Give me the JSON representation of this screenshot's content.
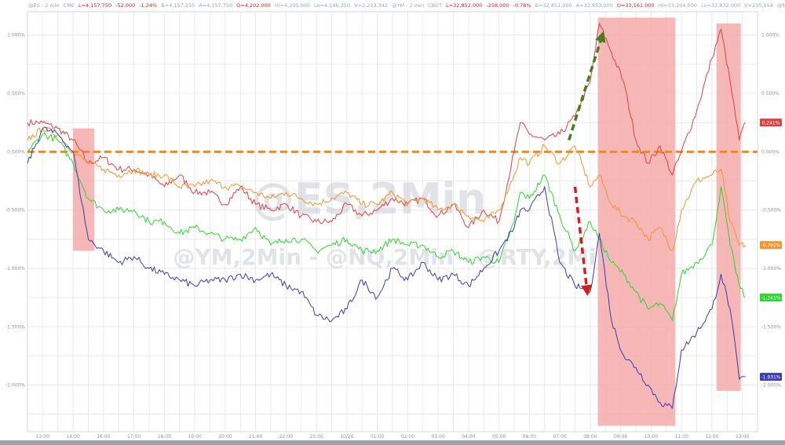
{
  "header": {
    "items": [
      {
        "text": "@ES - 2 min",
        "color": "#9aa3b2"
      },
      {
        "text": "CME",
        "color": "#9aa3b2"
      },
      {
        "text": "L=4,157.750",
        "color": "#d11f1f"
      },
      {
        "text": "-52.000",
        "color": "#d11f1f"
      },
      {
        "text": "-1.24%",
        "color": "#d11f1f"
      },
      {
        "text": "B=4,157.250",
        "color": "#9aa3b2"
      },
      {
        "text": "A=4,157.750",
        "color": "#9aa3b2"
      },
      {
        "text": "O=4,202.000",
        "color": "#d11f1f"
      },
      {
        "text": "Hi=4,205.000",
        "color": "#9aa3b2"
      },
      {
        "text": "Lo=4,146.250",
        "color": "#9aa3b2"
      },
      {
        "text": "V=2,233,342",
        "color": "#9aa3b2"
      },
      {
        "text": "@YM - 2 min",
        "color": "#9aa3b2"
      },
      {
        "text": "CBOT",
        "color": "#9aa3b2"
      },
      {
        "text": "L=32,852.000",
        "color": "#d11f1f"
      },
      {
        "text": "-258.000",
        "color": "#d11f1f"
      },
      {
        "text": "-0.78%",
        "color": "#d11f1f"
      },
      {
        "text": "B=32,851.000",
        "color": "#9aa3b2"
      },
      {
        "text": "A=32,853.000",
        "color": "#9aa3b2"
      },
      {
        "text": "O=33,161.000",
        "color": "#d11f1f"
      },
      {
        "text": "Hi=33,204.000",
        "color": "#9aa3b2"
      },
      {
        "text": "Lo=32,832.000",
        "color": "#9aa3b2"
      },
      {
        "text": "V=235,154",
        "color": "#9aa3b2"
      },
      {
        "text": "@NQ - 2 min",
        "color": "#9aa3b2"
      }
    ]
  },
  "watermark": {
    "line1": "@ES,2Min",
    "line2": "@YM,2Min - @NQ,2Min - @RTY,2Min"
  },
  "colors": {
    "ES": "#e34040",
    "YM": "#f0952e",
    "RTY": "#2fd42f",
    "NQ": "#3b3bb4",
    "zero_line": "#f08a1c",
    "highlight": "#f4aaaa",
    "green_arrow": "#4b7d1e",
    "red_arrow": "#d11f1f"
  },
  "chart_data": {
    "type": "line",
    "y_unit": "percent change",
    "ylim": [
      -2.4,
      1.2
    ],
    "y_ticks": [
      1.0,
      0.5,
      0.0,
      -0.5,
      -1.0,
      -1.5,
      -2.0
    ],
    "y_tick_labels_left": [
      "1.000%",
      "0.500%",
      "0.000%",
      "-0.500%",
      "-1.000%",
      "-1.500%",
      "-2.000%"
    ],
    "y_tick_labels_right": [
      "1.000%",
      "0.500%",
      "0.000%",
      "-0.500%",
      "-1.000%",
      "-1.500%",
      "-2.000%"
    ],
    "x_tick_labels": [
      "13:00",
      "14:00",
      "16:00",
      "17:00",
      "18:00",
      "19:00",
      "20:00",
      "21:00",
      "22:00",
      "23:00",
      "10/26",
      "01:00",
      "02:00",
      "03:00",
      "04:00",
      "05:00",
      "06:00",
      "07:00",
      "08:00",
      "09:00",
      "10:00",
      "11:00",
      "12:00",
      "13:00"
    ],
    "x_tick_positions": [
      0.5,
      1.5,
      2.5,
      3.5,
      4.5,
      5.5,
      6.5,
      7.5,
      8.5,
      9.5,
      10.5,
      11.5,
      12.5,
      13.5,
      14.5,
      15.5,
      16.5,
      17.5,
      18.5,
      19.5,
      20.5,
      21.5,
      22.5,
      23.5
    ],
    "xlim": [
      0,
      24
    ],
    "grid": true,
    "zero_line": 0.0,
    "highlight_regions": [
      [
        1.5,
        2.2
      ],
      [
        18.75,
        21.3
      ],
      [
        22.65,
        23.45
      ]
    ],
    "arrows": [
      {
        "from": [
          17.8,
          0.1
        ],
        "to": [
          18.9,
          1.0
        ],
        "color": "green"
      },
      {
        "from": [
          18.0,
          -0.3
        ],
        "to": [
          18.4,
          -1.2
        ],
        "color": "red"
      }
    ],
    "series": [
      {
        "name": "ES",
        "last_label": "0.241%",
        "x": [
          0,
          0.5,
          1.0,
          1.5,
          2.0,
          2.5,
          3.0,
          3.5,
          4.0,
          4.5,
          5.0,
          5.5,
          6.0,
          6.5,
          7.0,
          7.5,
          8.0,
          8.5,
          9.0,
          9.5,
          10.0,
          10.5,
          11.0,
          11.5,
          12.0,
          12.5,
          13.0,
          13.5,
          14.0,
          14.5,
          15.0,
          15.5,
          16.0,
          16.2,
          16.5,
          17.0,
          17.5,
          18.0,
          18.5,
          18.8,
          19.2,
          19.6,
          20.0,
          20.4,
          20.8,
          21.2,
          21.5,
          22.0,
          22.5,
          22.8,
          23.1,
          23.4,
          23.6
        ],
        "y": [
          0.25,
          0.25,
          0.2,
          0.1,
          -0.1,
          -0.05,
          -0.15,
          -0.15,
          -0.2,
          -0.3,
          -0.2,
          -0.35,
          -0.35,
          -0.45,
          -0.3,
          -0.45,
          -0.5,
          -0.45,
          -0.55,
          -0.6,
          -0.6,
          -0.45,
          -0.55,
          -0.5,
          -0.4,
          -0.45,
          -0.4,
          -0.55,
          -0.45,
          -0.65,
          -0.5,
          -0.6,
          0.0,
          0.25,
          0.15,
          0.1,
          0.15,
          0.3,
          0.6,
          1.1,
          0.85,
          0.6,
          0.1,
          -0.1,
          0.05,
          -0.2,
          0.0,
          0.35,
          0.8,
          1.05,
          0.6,
          0.1,
          0.25
        ]
      },
      {
        "name": "YM",
        "last_label": "-0.792%",
        "x": [
          0,
          0.5,
          1.0,
          1.5,
          2.0,
          2.5,
          3.0,
          3.5,
          4.0,
          4.5,
          5.0,
          5.5,
          6.0,
          6.5,
          7.0,
          7.5,
          8.0,
          8.5,
          9.0,
          9.5,
          10.0,
          10.5,
          11.0,
          11.5,
          12.0,
          12.5,
          13.0,
          13.5,
          14.0,
          14.5,
          15.0,
          15.5,
          16.0,
          16.2,
          16.5,
          17.0,
          17.5,
          18.0,
          18.5,
          18.8,
          19.2,
          19.6,
          20.0,
          20.4,
          20.8,
          21.2,
          21.5,
          22.0,
          22.5,
          22.8,
          23.1,
          23.4,
          23.6
        ],
        "y": [
          0.1,
          0.2,
          0.15,
          0.0,
          -0.1,
          -0.15,
          -0.2,
          -0.15,
          -0.2,
          -0.2,
          -0.3,
          -0.3,
          -0.25,
          -0.3,
          -0.3,
          -0.35,
          -0.4,
          -0.35,
          -0.4,
          -0.45,
          -0.4,
          -0.35,
          -0.45,
          -0.45,
          -0.35,
          -0.45,
          -0.4,
          -0.5,
          -0.45,
          -0.55,
          -0.6,
          -0.5,
          -0.2,
          -0.05,
          -0.1,
          0.05,
          -0.1,
          0.05,
          -0.3,
          -0.2,
          -0.45,
          -0.55,
          -0.6,
          -0.75,
          -0.65,
          -0.85,
          -0.5,
          -0.25,
          -0.2,
          -0.15,
          -0.6,
          -0.8,
          -0.8
        ]
      },
      {
        "name": "RTY",
        "last_label": "-1.241%",
        "x": [
          0,
          0.5,
          1.0,
          1.5,
          2.0,
          2.5,
          3.0,
          3.5,
          4.0,
          4.5,
          5.0,
          5.5,
          6.0,
          6.5,
          7.0,
          7.5,
          8.0,
          8.5,
          9.0,
          9.5,
          10.0,
          10.5,
          11.0,
          11.5,
          12.0,
          12.5,
          13.0,
          13.5,
          14.0,
          14.5,
          15.0,
          15.5,
          16.0,
          16.2,
          16.5,
          17.0,
          17.5,
          18.0,
          18.5,
          18.8,
          19.2,
          19.6,
          20.0,
          20.4,
          20.8,
          21.2,
          21.5,
          22.0,
          22.5,
          22.8,
          23.1,
          23.4,
          23.6
        ],
        "y": [
          0.0,
          0.15,
          0.1,
          -0.1,
          -0.4,
          -0.5,
          -0.5,
          -0.5,
          -0.6,
          -0.6,
          -0.7,
          -0.65,
          -0.7,
          -0.75,
          -0.75,
          -0.65,
          -0.8,
          -0.75,
          -0.75,
          -0.85,
          -0.8,
          -0.75,
          -0.85,
          -0.85,
          -0.75,
          -0.8,
          -0.8,
          -0.9,
          -0.85,
          -0.95,
          -0.9,
          -0.95,
          -0.6,
          -0.35,
          -0.4,
          -0.2,
          -0.55,
          -0.85,
          -0.6,
          -0.75,
          -0.95,
          -1.05,
          -1.2,
          -1.35,
          -1.3,
          -1.45,
          -1.05,
          -0.95,
          -0.8,
          -0.3,
          -0.8,
          -1.15,
          -1.25
        ]
      },
      {
        "name": "NQ",
        "last_label": "-1.931%",
        "x": [
          0,
          0.5,
          1.0,
          1.5,
          2.0,
          2.5,
          3.0,
          3.5,
          4.0,
          4.5,
          5.0,
          5.5,
          6.0,
          6.5,
          7.0,
          7.5,
          8.0,
          8.5,
          9.0,
          9.5,
          10.0,
          10.5,
          11.0,
          11.5,
          12.0,
          12.5,
          13.0,
          13.5,
          14.0,
          14.5,
          15.0,
          15.5,
          16.0,
          16.2,
          16.5,
          17.0,
          17.5,
          18.0,
          18.5,
          18.8,
          19.2,
          19.6,
          20.0,
          20.4,
          20.8,
          21.2,
          21.5,
          22.0,
          22.5,
          22.8,
          23.1,
          23.4,
          23.6
        ],
        "y": [
          -0.1,
          0.2,
          0.15,
          0.0,
          -0.75,
          -0.85,
          -0.95,
          -0.9,
          -1.0,
          -1.05,
          -1.1,
          -1.15,
          -1.1,
          -1.1,
          -1.05,
          -1.1,
          -1.05,
          -1.15,
          -1.2,
          -1.4,
          -1.45,
          -1.35,
          -1.1,
          -1.25,
          -1.0,
          -1.1,
          -0.95,
          -1.1,
          -1.05,
          -1.15,
          -1.0,
          -0.85,
          -0.65,
          -0.5,
          -0.5,
          -0.3,
          -0.95,
          -1.15,
          -1.2,
          -0.7,
          -1.45,
          -1.75,
          -1.85,
          -2.0,
          -2.15,
          -2.2,
          -1.7,
          -1.55,
          -1.35,
          -1.05,
          -1.35,
          -1.95,
          -1.93
        ]
      }
    ]
  }
}
